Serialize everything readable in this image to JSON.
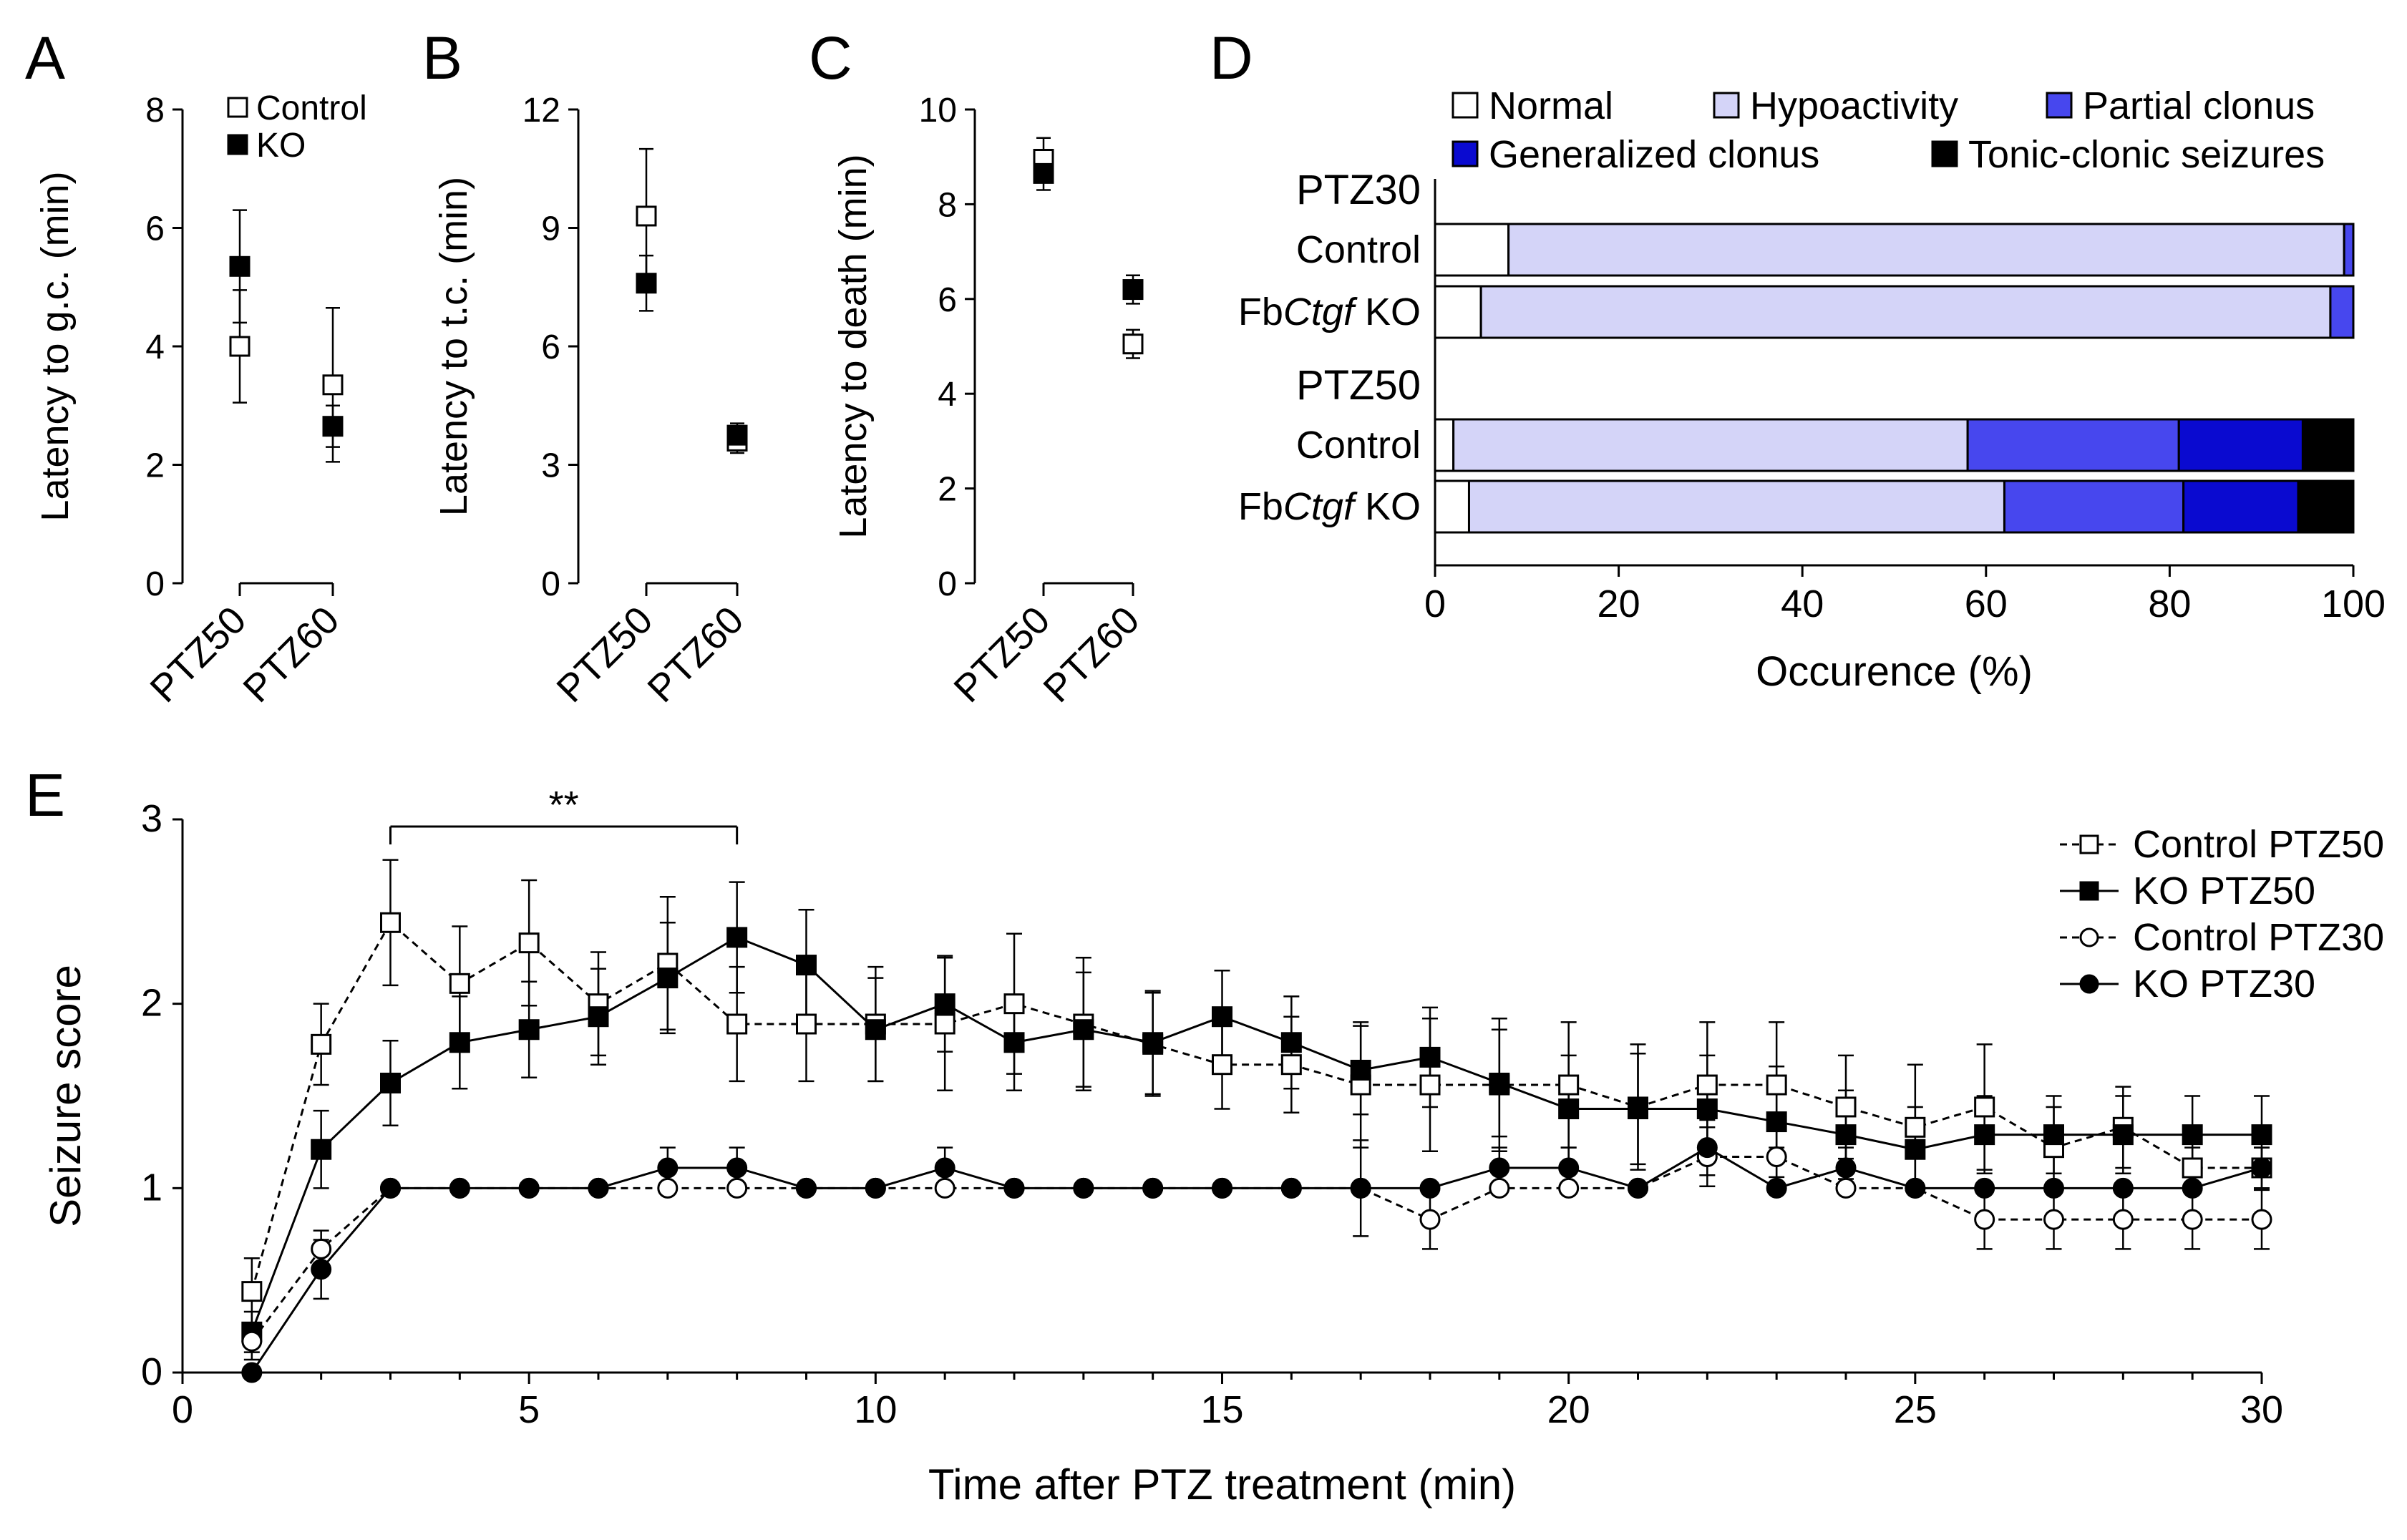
{
  "figure_title": "PTZ seizure susceptibility figure",
  "panel_labels": [
    "A",
    "B",
    "C",
    "D",
    "E"
  ],
  "colors": {
    "normal": "#ffffff",
    "hypoactivity": "#d4d4f8",
    "partial_clonus": "#4747ee",
    "generalized_clonus": "#0a0ad0",
    "tonic_clonic": "#000000"
  },
  "chart_data": [
    {
      "id": "A",
      "type": "scatter",
      "ylabel": "Latency to g.c. (min)",
      "ylim": [
        0,
        8
      ],
      "yticks": [
        "0",
        "2",
        "4",
        "6",
        "8"
      ],
      "categories": [
        "PTZ50",
        "PTZ60"
      ],
      "legend": [
        "Control",
        "KO"
      ],
      "series": [
        {
          "name": "Control",
          "marker": "open-square",
          "values": [
            4.0,
            3.35
          ],
          "errors": [
            0.95,
            1.3
          ]
        },
        {
          "name": "KO",
          "marker": "filled-square",
          "values": [
            5.35,
            2.65
          ],
          "errors": [
            0.95,
            0.35
          ]
        }
      ]
    },
    {
      "id": "B",
      "type": "scatter",
      "ylabel": "Latency to t.c. (min)",
      "ylim": [
        0,
        12
      ],
      "yticks": [
        "0",
        "3",
        "6",
        "9",
        "12"
      ],
      "categories": [
        "PTZ50",
        "PTZ60"
      ],
      "series": [
        {
          "name": "Control",
          "marker": "open-square",
          "values": [
            9.3,
            3.6
          ],
          "errors": [
            1.7,
            0.3
          ]
        },
        {
          "name": "KO",
          "marker": "filled-square",
          "values": [
            7.6,
            3.75
          ],
          "errors": [
            0.7,
            0.3
          ]
        }
      ]
    },
    {
      "id": "C",
      "type": "scatter",
      "ylabel": "Latency to death (min)",
      "ylim": [
        0,
        10
      ],
      "yticks": [
        "0",
        "2",
        "4",
        "6",
        "8",
        "10"
      ],
      "categories": [
        "PTZ50",
        "PTZ60"
      ],
      "series": [
        {
          "name": "Control",
          "marker": "open-square",
          "values": [
            8.95,
            5.05
          ],
          "errors": [
            0.45,
            0.3
          ]
        },
        {
          "name": "KO",
          "marker": "filled-square",
          "values": [
            8.65,
            6.2
          ],
          "errors": [
            0.35,
            0.3
          ]
        }
      ]
    },
    {
      "id": "D",
      "type": "bar",
      "xlabel": "Occurence (%)",
      "xlim": [
        0,
        100
      ],
      "xticks": [
        "0",
        "20",
        "40",
        "60",
        "80",
        "100"
      ],
      "legend": [
        "Normal",
        "Hypoactivity",
        "Partial clonus",
        "Generalized clonus",
        "Tonic-clonic seizures"
      ],
      "groups": [
        {
          "name": "PTZ30",
          "rows": [
            {
              "label_prefix": "",
              "label_italic": "",
              "label_suffix": "Control",
              "segments": [
                8,
                91,
                1,
                0,
                0
              ]
            },
            {
              "label_prefix": "Fb",
              "label_italic": "Ctgf",
              "label_suffix": " KO",
              "segments": [
                5,
                92.5,
                2.5,
                0,
                0
              ]
            }
          ]
        },
        {
          "name": "PTZ50",
          "rows": [
            {
              "label_prefix": "",
              "label_italic": "",
              "label_suffix": "Control",
              "segments": [
                2,
                56,
                23,
                13.5,
                5.5
              ]
            },
            {
              "label_prefix": "Fb",
              "label_italic": "Ctgf",
              "label_suffix": " KO",
              "segments": [
                3.7,
                58.3,
                19.5,
                12.5,
                6
              ]
            }
          ]
        }
      ]
    },
    {
      "id": "E",
      "type": "line",
      "xlabel": "Time after PTZ treatment (min)",
      "ylabel": "Seizure score",
      "xlim": [
        0,
        30
      ],
      "ylim": [
        0,
        3
      ],
      "xticks": [
        "0",
        "5",
        "10",
        "15",
        "20",
        "25",
        "30"
      ],
      "yticks": [
        "0",
        "1",
        "2",
        "3"
      ],
      "significance": {
        "label": "**",
        "x_start": 3,
        "x_end": 8
      },
      "x": [
        1,
        2,
        3,
        4,
        5,
        6,
        7,
        8,
        9,
        10,
        11,
        12,
        13,
        14,
        15,
        16,
        17,
        18,
        19,
        20,
        21,
        22,
        23,
        24,
        25,
        26,
        27,
        28,
        29,
        30
      ],
      "series": [
        {
          "name": "Control PTZ50",
          "marker": "open-square",
          "dashed": true,
          "values": [
            0.44,
            1.78,
            2.44,
            2.11,
            2.33,
            2.0,
            2.22,
            1.89,
            1.89,
            1.89,
            1.89,
            2.0,
            1.89,
            1.78,
            1.67,
            1.67,
            1.56,
            1.56,
            1.56,
            1.56,
            1.44,
            1.56,
            1.56,
            1.44,
            1.33,
            1.44,
            1.22,
            1.33,
            1.11,
            1.11
          ],
          "errors": [
            0.18,
            0.22,
            0.34,
            0.31,
            0.34,
            0.28,
            0.36,
            0.31,
            0.31,
            0.31,
            0.36,
            0.38,
            0.36,
            0.28,
            0.24,
            0.26,
            0.34,
            0.36,
            0.36,
            0.34,
            0.34,
            0.34,
            0.34,
            0.28,
            0.34,
            0.34,
            0.22,
            0.22,
            0.11,
            0.11
          ]
        },
        {
          "name": "KO PTZ50",
          "marker": "filled-square",
          "dashed": false,
          "values": [
            0.22,
            1.21,
            1.57,
            1.79,
            1.86,
            1.93,
            2.14,
            2.36,
            2.21,
            1.86,
            2.0,
            1.79,
            1.86,
            1.79,
            1.93,
            1.79,
            1.64,
            1.71,
            1.57,
            1.43,
            1.43,
            1.43,
            1.36,
            1.29,
            1.21,
            1.29,
            1.29,
            1.29,
            1.29,
            1.29
          ],
          "errors": [
            0.11,
            0.21,
            0.23,
            0.25,
            0.26,
            0.26,
            0.3,
            0.3,
            0.3,
            0.28,
            0.26,
            0.26,
            0.31,
            0.28,
            0.25,
            0.25,
            0.24,
            0.27,
            0.29,
            0.29,
            0.3,
            0.29,
            0.3,
            0.24,
            0.23,
            0.21,
            0.21,
            0.21,
            0.21,
            0.21
          ]
        },
        {
          "name": "Control PTZ30",
          "marker": "open-circle",
          "dashed": true,
          "values": [
            0.17,
            0.67,
            1.0,
            1.0,
            1.0,
            1.0,
            1.0,
            1.0,
            1.0,
            1.0,
            1.0,
            1.0,
            1.0,
            1.0,
            1.0,
            1.0,
            1.0,
            0.83,
            1.0,
            1.0,
            1.0,
            1.17,
            1.17,
            1.0,
            1.0,
            0.83,
            0.83,
            0.83,
            0.83,
            0.83
          ],
          "errors": [
            0.1,
            0.1,
            0,
            0,
            0,
            0,
            0,
            0,
            0,
            0,
            0,
            0,
            0,
            0,
            0,
            0,
            0.26,
            0.16,
            0,
            0,
            0,
            0.16,
            0.16,
            0,
            0,
            0.16,
            0.16,
            0.16,
            0.16,
            0.16
          ]
        },
        {
          "name": "KO PTZ30",
          "marker": "filled-circle",
          "dashed": false,
          "values": [
            0.0,
            0.56,
            1.0,
            1.0,
            1.0,
            1.0,
            1.11,
            1.11,
            1.0,
            1.0,
            1.11,
            1.0,
            1.0,
            1.0,
            1.0,
            1.0,
            1.0,
            1.0,
            1.11,
            1.11,
            1.0,
            1.22,
            1.0,
            1.11,
            1.0,
            1.0,
            1.0,
            1.0,
            1.0,
            1.11
          ],
          "errors": [
            0,
            0.16,
            0,
            0,
            0,
            0,
            0.11,
            0.11,
            0,
            0,
            0.11,
            0,
            0,
            0,
            0,
            0,
            0,
            0,
            0.11,
            0.11,
            0,
            0.15,
            0,
            0.11,
            0,
            0,
            0,
            0,
            0,
            0.11
          ]
        }
      ]
    }
  ]
}
